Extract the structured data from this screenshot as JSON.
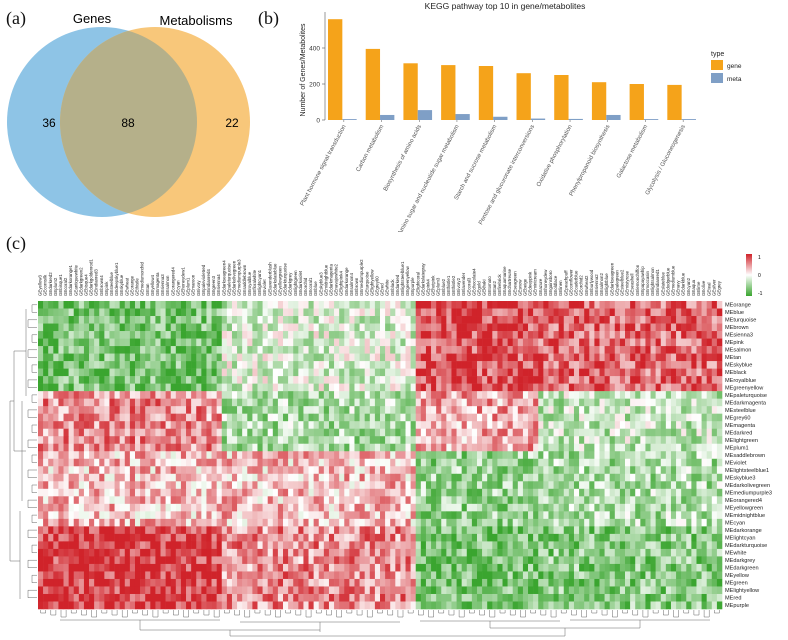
{
  "panels": {
    "a": {
      "label": "(a)"
    },
    "b": {
      "label": "(b)"
    },
    "c": {
      "label": "(c)"
    }
  },
  "venn": {
    "left_name": "Genes",
    "right_name": "Metabolisms",
    "left_only": "36",
    "overlap": "88",
    "right_only": "22",
    "colors": {
      "left": "#8ec4e6",
      "right": "#f8c77a",
      "overlap": "#b5b08a"
    }
  },
  "chart_data": {
    "type": "bar",
    "title": "KEGG pathway top 10 in gene/metabolites",
    "xlabel": "",
    "ylabel": "Number of Genes/Metabolites",
    "ylim": [
      0,
      600
    ],
    "yticks": [
      "0",
      "200",
      "400"
    ],
    "legend_title": "type",
    "legend_position": "right",
    "categories": [
      "Plant hormone signal transduction",
      "Carbon metabolism",
      "Biosynthesis of amino acids",
      "Amino sugar and nucleotide sugar metabolism",
      "Starch and sucrose metabolism",
      "Pentose and glucuronate interconversions",
      "Oxidative phosphorylation",
      "Phenylpropanoid biosynthesis",
      "Galactose metabolism",
      "Glycolysis / Gluconeogenesis"
    ],
    "series": [
      {
        "name": "gene",
        "color": "#f5a31a",
        "values": [
          560,
          395,
          315,
          305,
          300,
          260,
          250,
          210,
          200,
          195
        ]
      },
      {
        "name": "meta",
        "color": "#7f9fc6",
        "values": [
          5,
          28,
          55,
          33,
          18,
          8,
          6,
          28,
          5,
          5
        ]
      }
    ]
  },
  "heatmap": {
    "colorbar_ticks": [
      "1",
      "0",
      "-1"
    ],
    "colorbar_colors": {
      "high": "#d0232a",
      "mid": "#ffffff",
      "low": "#3aa52f"
    },
    "column_labels": [
      "GEyellow3",
      "GEcornsilk",
      "GEdarkred2",
      "GEplum2",
      "GEbisque1",
      "GEcoral2",
      "GEdarkorange1",
      "GEantiquewhite",
      "GEdarkgreen2",
      "GEbisque4",
      "GEdarkgoldenrod1",
      "GEindianred3",
      "GEbrown4",
      "GEpink",
      "GEsteelblue",
      "GEdeepskyblue1",
      "GEskyblue",
      "GEwheat",
      "GEorange",
      "GEthistle",
      "GEmediumorchid",
      "GEtan",
      "GEyellow4",
      "GEmagenta",
      "GEsienna3",
      "GEsalmon",
      "GEorangered4",
      "GEcyan",
      "GEhoneydew1",
      "GEplum1",
      "GEmaroon",
      "GEivory",
      "GEpalevioletred",
      "GEindianred4",
      "GEgreen3",
      "GEsienna4",
      "GEdarkseagreen4",
      "GEpaleturquoise",
      "GEdarkolivegreen",
      "GEmediumpurple3",
      "GEsaddlebrown",
      "GEroyalblue",
      "GEfloralwhite",
      "GElightcyan1",
      "GEviolet",
      "GElavenderblush",
      "GEdarkslateblue",
      "GEyellowgreen",
      "GEdarkturquoise",
      "GEdarkgrey",
      "GElightgreen",
      "GEdarkviolet",
      "GEorchid",
      "GEcoral1",
      "GEblue",
      "GEskyblue3",
      "GEmidnightblue",
      "GEdarkmagenta",
      "GEnavajowhite2",
      "GElightpink4",
      "GEdarkorange",
      "GEsalmon4",
      "GEbrown",
      "GEmediumpurple2",
      "GEturquoise",
      "GElightyellow",
      "GEgrey60",
      "GEred",
      "GEwhite",
      "GEblack",
      "GEdarkred",
      "GElightsteelblue1",
      "GEgreenyellow",
      "GEpurple",
      "GElightcoral",
      "GEdarkslategray",
      "GEpink4",
      "GEhotpink",
      "GEplum3",
      "GEblue2",
      "GEthistle1",
      "GEthistle2",
      "GEivory2",
      "GElavender",
      "GEcoral3",
      "GEchocolate4",
      "GEgold",
      "GEkhaki",
      "GEtomato",
      "GEtan2",
      "GEfirebrick",
      "GEaquamarine",
      "GEchartreuse",
      "GEseagreen",
      "GEsnow",
      "GEbeige",
      "GEdeeppink",
      "GEmintcream",
      "GEazure",
      "GEhoneydew",
      "GEgainsboro",
      "GEoldlace",
      "GElinen",
      "GEpeachpuff",
      "GEcornflower",
      "GEcadetblue",
      "GEorchid2",
      "GEwheat2",
      "GEburlywood",
      "GEsienna2",
      "GEsalmon2",
      "GElightblue",
      "GEdarkseagreen",
      "GEpalegreen",
      "GEsteelblue2",
      "GEmistyrose",
      "GEseashell",
      "GElemonchiffon",
      "GEpapayawhip",
      "GEmoccasin",
      "GElightsalmon",
      "GEindianred1",
      "GEslateblue",
      "GEdodgerblue",
      "GEmediumblue",
      "GEnavy",
      "GEdarkblue",
      "GEcyan2",
      "GEaqua",
      "GElime",
      "GEolive",
      "GEteal",
      "GEsilver",
      "GEgrey"
    ],
    "row_labels": [
      "MEorange",
      "MEblue",
      "MEturquoise",
      "MEbrown",
      "MEsienna3",
      "MEpink",
      "MEsalmon",
      "MEtan",
      "MEskyblue",
      "MEblack",
      "MEroyalblue",
      "MEgreenyellow",
      "MEpaleturquoise",
      "MEdarkmagenta",
      "MEsteelblue",
      "MEgrey60",
      "MEmagenta",
      "MEdarkred",
      "MElightgreen",
      "MEplum1",
      "MEsaddlebrown",
      "MEviolet",
      "MElightsteelblue1",
      "MEskyblue3",
      "MEdarkolivegreen",
      "MEmediumpurple3",
      "MEorangered4",
      "MEyellowgreen",
      "MEmidnightblue",
      "MEcyan",
      "MEdarkorange",
      "MElightcyan",
      "MEdarkturquoise",
      "MEwhite",
      "MEdarkgrey",
      "MEdarkgreen",
      "MEyellow",
      "MEgreen",
      "MElightyellow",
      "MEred",
      "MEpurple"
    ]
  }
}
